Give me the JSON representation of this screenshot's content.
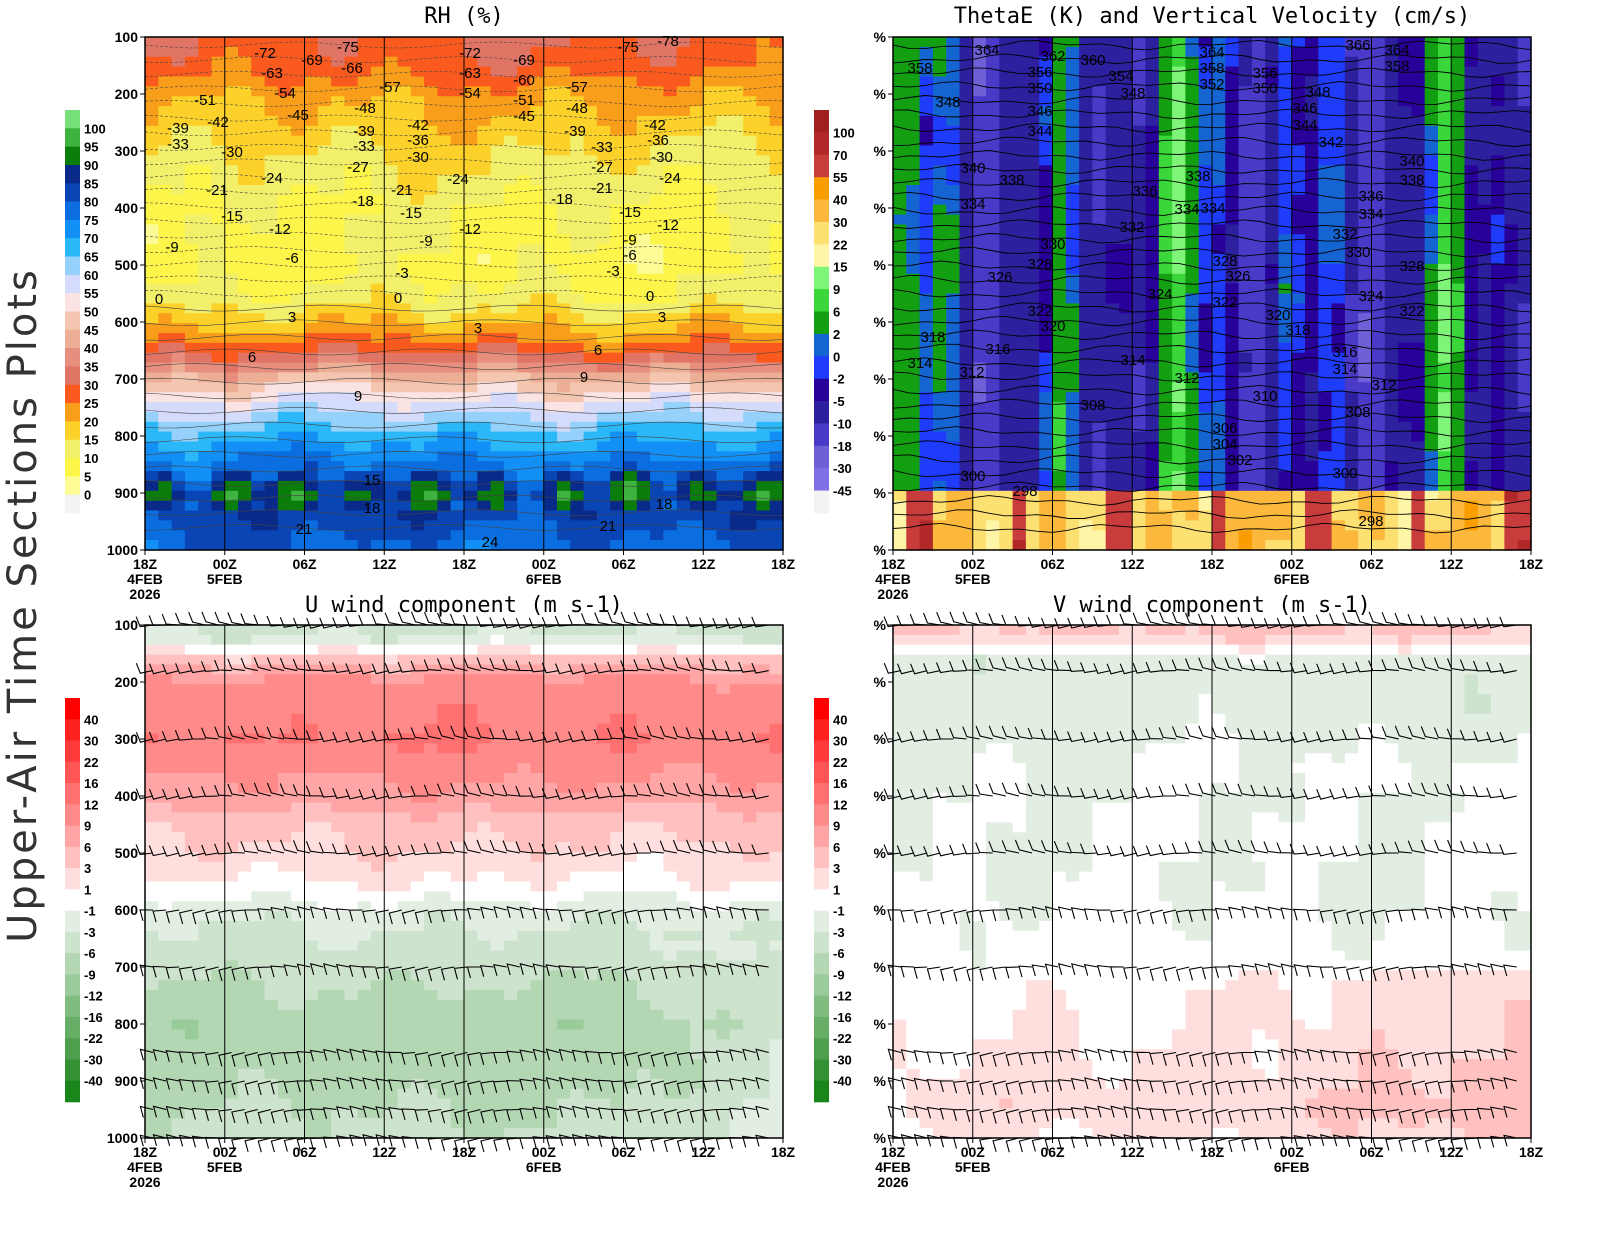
{
  "side_label": "Upper-Air Time Sections Plots",
  "x_ticks": [
    {
      "l1": "18Z",
      "l2": "4FEB",
      "l3": "2026"
    },
    {
      "l1": "00Z",
      "l2": "5FEB"
    },
    {
      "l1": "06Z"
    },
    {
      "l1": "12Z"
    },
    {
      "l1": "18Z"
    },
    {
      "l1": "00Z",
      "l2": "6FEB"
    },
    {
      "l1": "06Z"
    },
    {
      "l1": "12Z"
    },
    {
      "l1": "18Z"
    }
  ],
  "chart_data": [
    {
      "type": "heatmap",
      "title": "RH (%)",
      "y_range": [
        100,
        1000
      ],
      "y_inverted": true,
      "y_tick_labels": [
        "100",
        "200",
        "300",
        "400",
        "500",
        "600",
        "700",
        "800",
        "900",
        "1000"
      ],
      "colorbar": {
        "labels": [
          "100",
          "95",
          "90",
          "85",
          "80",
          "75",
          "70",
          "65",
          "60",
          "55",
          "50",
          "45",
          "40",
          "35",
          "30",
          "25",
          "20",
          "15",
          "10",
          "5",
          "0"
        ],
        "colors": [
          "#77e07a",
          "#3fb33f",
          "#0a7d0a",
          "#0a2a8a",
          "#0a45b5",
          "#0a6ee0",
          "#1290f5",
          "#2ab8f8",
          "#96d1fb",
          "#d5dcfb",
          "#fce3e3",
          "#f4c6b0",
          "#ecae95",
          "#e88e7e",
          "#e07565",
          "#fa5a1e",
          "#f99e1a",
          "#fbd12a",
          "#f2ef6a",
          "#fdf54a",
          "#fdfb96",
          "#f3f3f3"
        ]
      },
      "contour_overlay": "temperature (dashed < 0, solid >= 0)",
      "contour_labels": [
        "-72",
        "-75",
        "-69",
        "-66",
        "-63",
        "-54",
        "-57",
        "-51",
        "-48",
        "-45",
        "-42",
        "-39",
        "-33",
        "-30",
        "-24",
        "-21",
        "-15",
        "-12",
        "-9",
        "-6",
        "0",
        "3",
        "6",
        "9",
        "15",
        "18",
        "21",
        "24",
        "-72",
        "-69",
        "-75",
        "-78",
        "-63",
        "-60",
        "-54",
        "-57",
        "-51",
        "-48",
        "-45",
        "-42",
        "-36",
        "-39",
        "-33",
        "-30",
        "-27",
        "-18",
        "-21",
        "-15",
        "-9",
        "-24",
        "-12",
        "-3",
        "0",
        "3",
        "-39",
        "-33",
        "-27",
        "-21",
        "-18",
        "-42",
        "-36",
        "-30",
        "-24",
        "-15",
        "-12",
        "-9",
        "-6",
        "-3",
        "0",
        "3",
        "6",
        "9",
        "18",
        "21"
      ]
    },
    {
      "type": "heatmap",
      "title": "ThetaE (K) and Vertical Velocity (cm/s)",
      "y_range": [
        100,
        1000
      ],
      "y_inverted": true,
      "y_tick_labels": [
        "%",
        "%",
        "%",
        "%",
        "%",
        "%",
        "%",
        "%",
        "%",
        "%"
      ],
      "colorbar": {
        "labels": [
          "100",
          "70",
          "55",
          "40",
          "30",
          "22",
          "15",
          "9",
          "6",
          "2",
          "0",
          "-2",
          "-5",
          "-10",
          "-18",
          "-30",
          "-45"
        ],
        "colors": [
          "#a02020",
          "#b22828",
          "#c83c3c",
          "#fa9e00",
          "#fbb83c",
          "#fde072",
          "#fef6a6",
          "#7ef478",
          "#3ad63a",
          "#12a012",
          "#1464d2",
          "#1e3cfa",
          "#28009a",
          "#2c209e",
          "#4a3ac8",
          "#7060d8",
          "#8070e8",
          "#f3f3f3"
        ]
      },
      "contour_labels": [
        "364",
        "362",
        "360",
        "358",
        "356",
        "354",
        "350",
        "348",
        "348",
        "346",
        "344",
        "340",
        "338",
        "336",
        "334",
        "334",
        "332",
        "330",
        "328",
        "326",
        "324",
        "322",
        "320",
        "318",
        "316",
        "314",
        "312",
        "314",
        "312",
        "308",
        "310",
        "306",
        "304",
        "302",
        "300",
        "298",
        "364",
        "358",
        "352",
        "356",
        "350",
        "348",
        "346",
        "344",
        "342",
        "338",
        "334",
        "328",
        "326",
        "322",
        "320",
        "318",
        "366",
        "364",
        "358",
        "340",
        "338",
        "336",
        "334",
        "332",
        "330",
        "328",
        "324",
        "322",
        "316",
        "314",
        "312",
        "308",
        "300",
        "298"
      ]
    },
    {
      "type": "heatmap",
      "title": "U wind component (m s-1)",
      "y_range": [
        100,
        1000
      ],
      "y_inverted": true,
      "y_tick_labels": [
        "100",
        "200",
        "300",
        "400",
        "500",
        "600",
        "700",
        "800",
        "900",
        "1000"
      ],
      "colorbar": {
        "labels": [
          "40",
          "30",
          "22",
          "16",
          "12",
          "9",
          "6",
          "3",
          "1",
          "-1",
          "-3",
          "-6",
          "-9",
          "-12",
          "-16",
          "-22",
          "-30",
          "-40"
        ],
        "colors": [
          "#ff0000",
          "#ff2020",
          "#ff3a3a",
          "#ff5555",
          "#ff7070",
          "#ff8a8a",
          "#ffa5a5",
          "#ffc0c0",
          "#ffdede",
          "#ffffff",
          "#e3eee3",
          "#cde3cd",
          "#b3d6b3",
          "#9acb9a",
          "#80bb80",
          "#66ad66",
          "#4d9f4d",
          "#339133",
          "#1a851a"
        ]
      },
      "overlay": "wind barbs"
    },
    {
      "type": "heatmap",
      "title": "V wind component (m s-1)",
      "y_range": [
        100,
        1000
      ],
      "y_inverted": true,
      "y_tick_labels": [
        "%",
        "%",
        "%",
        "%",
        "%",
        "%",
        "%",
        "%",
        "%",
        "%"
      ],
      "colorbar": {
        "labels": [
          "40",
          "30",
          "22",
          "16",
          "12",
          "9",
          "6",
          "3",
          "1",
          "-1",
          "-3",
          "-6",
          "-9",
          "-12",
          "-16",
          "-22",
          "-30",
          "-40"
        ],
        "colors": [
          "#ff0000",
          "#ff2020",
          "#ff3a3a",
          "#ff5555",
          "#ff7070",
          "#ff8a8a",
          "#ffa5a5",
          "#ffc0c0",
          "#ffdede",
          "#ffffff",
          "#e3eee3",
          "#cde3cd",
          "#b3d6b3",
          "#9acb9a",
          "#80bb80",
          "#66ad66",
          "#4d9f4d",
          "#339133",
          "#1a851a"
        ]
      },
      "overlay": "wind barbs"
    }
  ]
}
